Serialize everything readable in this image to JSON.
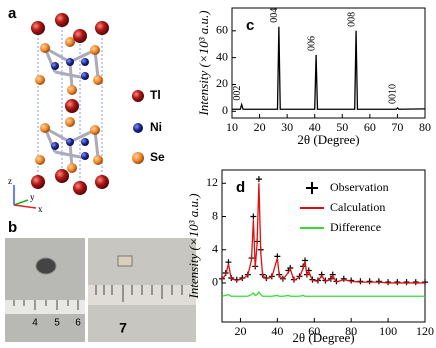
{
  "panel_a": {
    "label": "a",
    "legend": [
      "Tl",
      "Ni",
      "Se"
    ],
    "axes": [
      "z",
      "y",
      "x"
    ]
  },
  "panel_b": {
    "label": "b",
    "ruler_labels": [
      "4",
      "5",
      "6",
      "7"
    ]
  },
  "chart_data": [
    {
      "type": "line",
      "label": "c",
      "xlabel": "2θ (Degree)",
      "ylabel": "Intensity (×10³ a.u.)",
      "x": [
        10,
        13,
        13.5,
        14,
        26.5,
        27,
        27.5,
        40,
        40.5,
        41,
        54.5,
        55,
        55.5,
        69.5,
        70,
        70.5,
        80
      ],
      "values": [
        1.5,
        1.5,
        5,
        1.5,
        1.5,
        63,
        1.5,
        1.5,
        42,
        1.5,
        1.5,
        60,
        1.5,
        1.5,
        2.5,
        1.5,
        1.8
      ],
      "color": "#000000",
      "xlim": [
        10,
        80
      ],
      "xticks": [
        10,
        20,
        30,
        40,
        50,
        60,
        70,
        80
      ],
      "ylim": [
        -5,
        77
      ],
      "yticks": [
        0,
        20,
        40,
        60
      ],
      "annotations": [
        {
          "text": "002",
          "x": 13.5
        },
        {
          "text": "004",
          "x": 27
        },
        {
          "text": "006",
          "x": 40.5
        },
        {
          "text": "008",
          "x": 55
        },
        {
          "text": "0010",
          "x": 70
        }
      ]
    },
    {
      "type": "line",
      "label": "d",
      "xlabel": "2θ (Degree)",
      "ylabel": "Intensity (×10³ a.u.)",
      "x": [
        10,
        12,
        13.5,
        15,
        18,
        21,
        24,
        26,
        27,
        28,
        29,
        30,
        31,
        32,
        34,
        37,
        40,
        41,
        43,
        46,
        47,
        49,
        52,
        54,
        55,
        56,
        57,
        59,
        62,
        64,
        66,
        69,
        70,
        72,
        76,
        80,
        85,
        90,
        95,
        100,
        105,
        110,
        115,
        120
      ],
      "series": [
        {
          "name": "Observation",
          "color": "#000000",
          "style": "marker",
          "values": [
            0.5,
            1.2,
            2.5,
            0.6,
            0.4,
            0.6,
            1.0,
            3,
            8,
            2,
            5,
            12.5,
            4,
            1,
            0.6,
            0.8,
            3.2,
            1,
            0.5,
            1.5,
            1.8,
            0.4,
            0.8,
            2,
            2.7,
            1,
            1.5,
            0.4,
            0.3,
            1,
            0.3,
            0.5,
            1,
            0.2,
            0.5,
            0.3,
            0.2,
            0.2,
            0.2,
            0.1,
            0.1,
            0.1,
            0.1,
            0.1
          ]
        },
        {
          "name": "Calculation",
          "color": "#e01010",
          "style": "line",
          "values": [
            0.4,
            1.0,
            2.3,
            0.5,
            0.3,
            0.5,
            0.9,
            2.8,
            7.6,
            1.8,
            4.7,
            12,
            3.7,
            0.9,
            0.5,
            0.7,
            3,
            0.9,
            0.4,
            1.3,
            1.7,
            0.3,
            0.7,
            1.8,
            2.6,
            0.9,
            1.4,
            0.3,
            0.2,
            0.9,
            0.2,
            0.4,
            0.9,
            0.1,
            0.4,
            0.2,
            0.1,
            0.1,
            0.1,
            0,
            0,
            0,
            0,
            0
          ]
        },
        {
          "name": "Difference",
          "color": "#33dd33",
          "style": "line",
          "values": [
            -1.6,
            -1.5,
            -1.4,
            -1.6,
            -1.6,
            -1.6,
            -1.6,
            -1.4,
            -1.2,
            -1.5,
            -1.4,
            -1.1,
            -1.4,
            -1.6,
            -1.6,
            -1.6,
            -1.5,
            -1.6,
            -1.6,
            -1.5,
            -1.6,
            -1.6,
            -1.6,
            -1.5,
            -1.6,
            -1.6,
            -1.6,
            -1.6,
            -1.6,
            -1.6,
            -1.6,
            -1.6,
            -1.6,
            -1.6,
            -1.6,
            -1.6,
            -1.6,
            -1.6,
            -1.6,
            -1.6,
            -1.6,
            -1.6,
            -1.6,
            -1.6
          ]
        }
      ],
      "xlim": [
        10,
        120
      ],
      "xticks": [
        20,
        40,
        60,
        80,
        100,
        120
      ],
      "ylim": [
        -4.7,
        13.6
      ],
      "yticks": [
        0,
        4,
        8,
        12
      ]
    }
  ]
}
